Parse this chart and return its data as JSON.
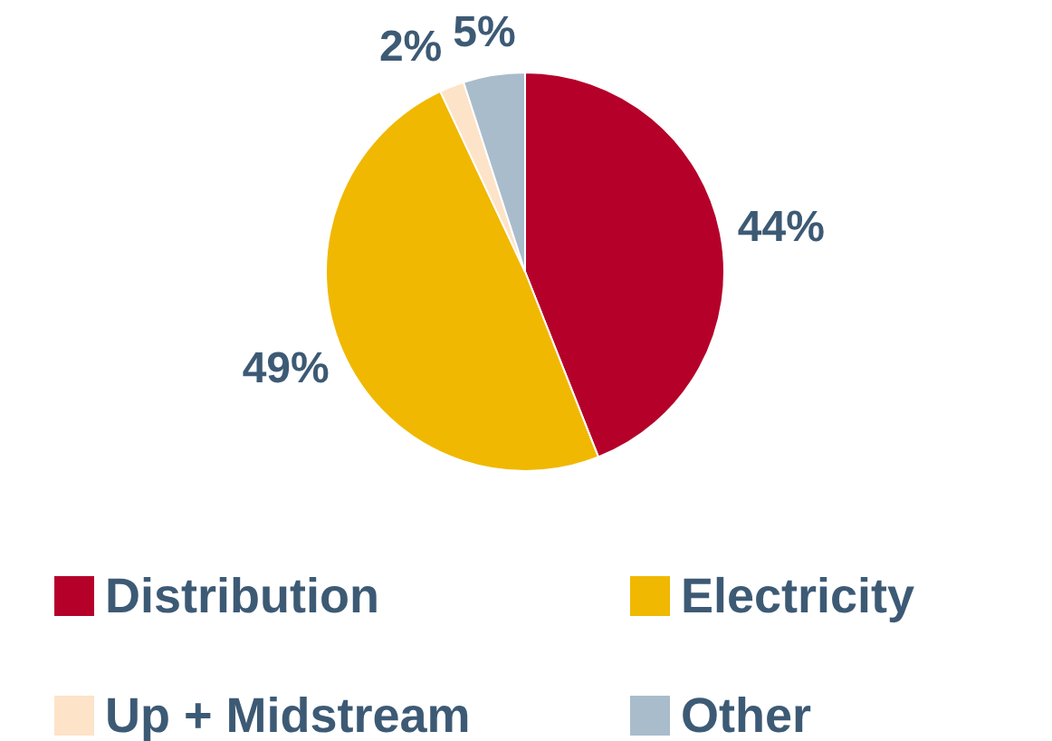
{
  "chart_data": {
    "type": "pie",
    "categories": [
      "Distribution",
      "Electricity",
      "Up + Midstream",
      "Other"
    ],
    "values": [
      44,
      49,
      2,
      5
    ],
    "colors": [
      "#b5002a",
      "#f0b800",
      "#fde3c8",
      "#a9bccb"
    ],
    "value_labels": [
      "44%",
      "49%",
      "2%",
      "5%"
    ],
    "legend": "bottom"
  }
}
